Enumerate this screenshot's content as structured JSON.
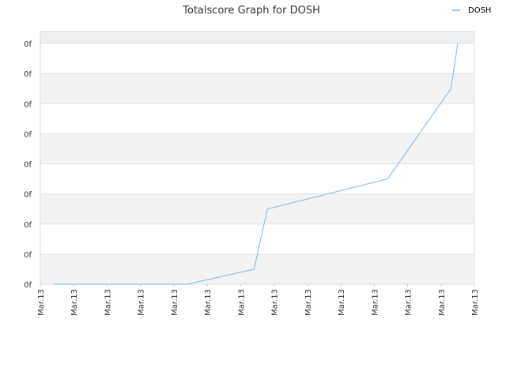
{
  "chart_data": {
    "type": "line",
    "title": "Totalscore Graph for DOSH",
    "xlabel": "",
    "ylabel": "",
    "x_tick_labels": [
      "Mar.13",
      "Mar.13",
      "Mar.13",
      "Mar.13",
      "Mar.13",
      "Mar.13",
      "Mar.13",
      "Mar.13",
      "Mar.13",
      "Mar.13",
      "Mar.13",
      "Mar.13",
      "Mar.13",
      "Mar.13"
    ],
    "y_tick_labels": [
      "0f",
      "0f",
      "0f",
      "0f",
      "0f",
      "0f",
      "0f",
      "0f",
      "0f"
    ],
    "x_range": [
      0,
      13
    ],
    "ylim": [
      0,
      8
    ],
    "grid": true,
    "legend": "top-right",
    "series": [
      {
        "name": "DOSH",
        "color": "#90c3ee",
        "x": [
          0.4,
          2.0,
          4.4,
          6.4,
          6.8,
          10.4,
          12.3,
          12.5
        ],
        "y": [
          0,
          0,
          0,
          0.5,
          2.5,
          3.5,
          6.5,
          8
        ]
      }
    ]
  }
}
